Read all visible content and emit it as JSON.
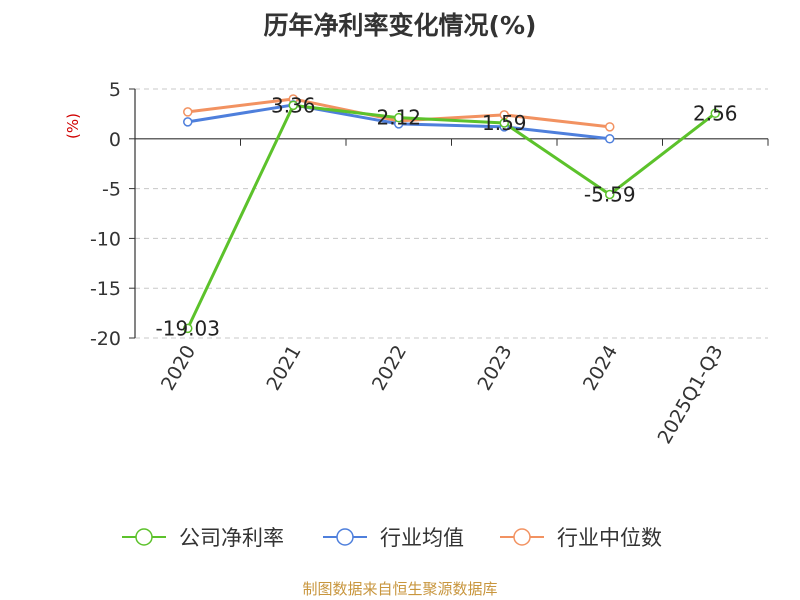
{
  "title": "历年净利率变化情况(%)",
  "source": "制图数据来自恒生聚源数据库",
  "chart_data": {
    "type": "line",
    "title": "历年净利率变化情况(%)",
    "ylabel": "(%)",
    "categories": [
      "2020",
      "2021",
      "2022",
      "2023",
      "2024",
      "2025Q1-Q3"
    ],
    "ylim": [
      -20,
      5
    ],
    "yticks": [
      5,
      0,
      -5,
      -10,
      -15,
      -20
    ],
    "grid": true,
    "legend": "bottom",
    "series": [
      {
        "name": "公司净利率",
        "color": "#5cc22b",
        "values": [
          -19.03,
          3.36,
          2.12,
          1.59,
          -5.59,
          2.56
        ],
        "labels": [
          "-19.03",
          "3.36",
          "2.12",
          "1.59",
          "-5.59",
          "2.56"
        ]
      },
      {
        "name": "行业均值",
        "color": "#4e7fdc",
        "values": [
          1.7,
          3.4,
          1.5,
          1.2,
          0.0,
          null
        ]
      },
      {
        "name": "行业中位数",
        "color": "#f29261",
        "values": [
          2.7,
          4.0,
          1.8,
          2.4,
          1.2,
          null
        ]
      }
    ]
  }
}
